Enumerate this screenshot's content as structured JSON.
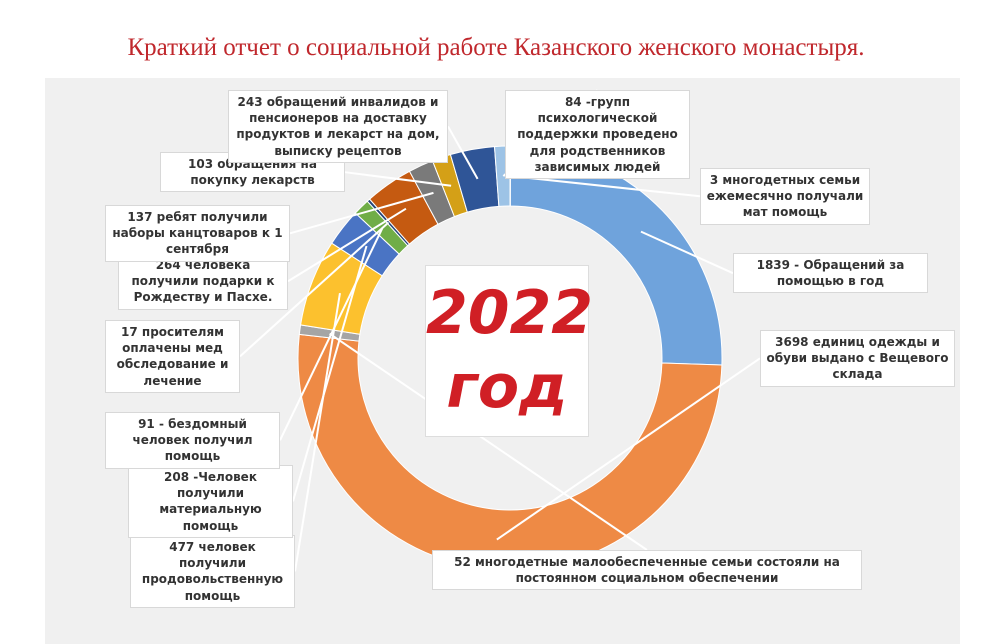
{
  "chart_data": {
    "type": "donut",
    "title": "Краткий отчет о социальной работе Казанского женского монастыря.",
    "center_label": "2022",
    "center_sublabel": "год",
    "values": [
      3,
      1839,
      3698,
      52,
      477,
      208,
      91,
      17,
      264,
      137,
      103,
      243,
      84
    ],
    "value_labels": [
      "3 многодетных семьи ежемесячно получали мат помощь",
      "1839 - Обращений за помощью в год",
      "3698 единиц одежды и обуви выдано с Вещевого склада",
      "52 многодетные малообеспеченные семьи состояли на постоянном социальном обеспечении",
      "477 человек получили продовольственную помощь",
      "208 -Человек получили материальную помощь",
      "91 - бездомный человек получил помощь",
      "17 просителям оплачены мед обследование и лечение",
      "264 человека получили подарки к Рождеству и Пасхе.",
      "137 ребят получили наборы канцтоваров к 1 сентября",
      "103 обращения на покупку лекарств",
      "243 обращений инвалидов и пенсионеров на доставку продуктов и лекарст на дом, выписку рецептов",
      "84 -групп психологической поддержки проведено для родственников зависимых людей"
    ],
    "colors": [
      "#ed7d31",
      "#6fa3dc",
      "#ee8a45",
      "#a5a5a5",
      "#fcc12e",
      "#4a74c4",
      "#70ad47",
      "#264478",
      "#c55a11",
      "#7a7a7a",
      "#d4a017",
      "#2f5597",
      "#9dc3e6"
    ]
  }
}
